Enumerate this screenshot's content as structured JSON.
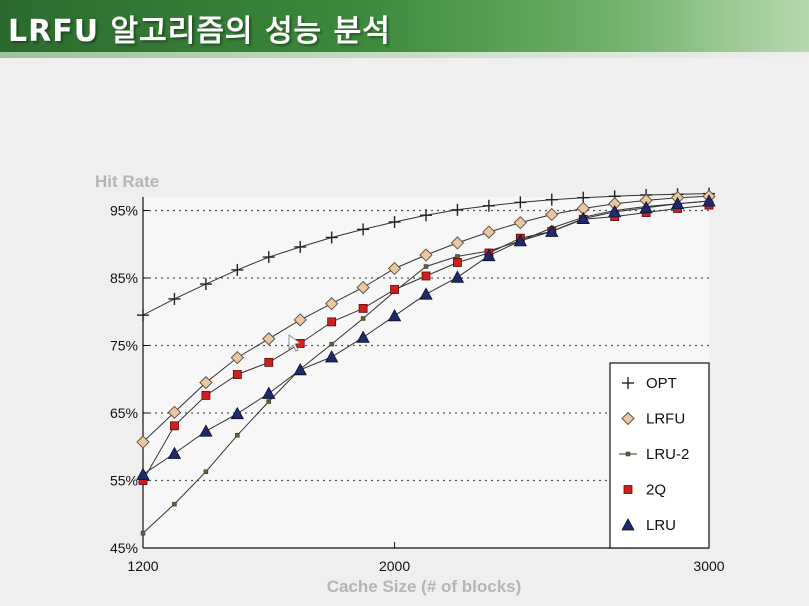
{
  "slide": {
    "title": "LRFU 알고리즘의 성능 분석"
  },
  "colors": {
    "title_green": "#3c8a3c",
    "opt": "#222222",
    "lrfu": "#e9c7a4",
    "lru2": "#6b5a3e",
    "q2": "#d11f1f",
    "lru": "#1f2a6b"
  },
  "chart_data": {
    "type": "line",
    "ylabel": "Hit Rate",
    "xlabel": "Cache Size (# of blocks)",
    "xlim": [
      1200,
      3000
    ],
    "ylim": [
      45,
      97
    ],
    "x_ticks": [
      {
        "value": 1200,
        "label": "1200"
      },
      {
        "value": 2000,
        "label": "2000"
      },
      {
        "value": 3000,
        "label": "3000"
      }
    ],
    "y_ticks": [
      {
        "value": 45,
        "label": "45%"
      },
      {
        "value": 55,
        "label": "55%"
      },
      {
        "value": 65,
        "label": "65%"
      },
      {
        "value": 75,
        "label": "75%"
      },
      {
        "value": 85,
        "label": "85%"
      },
      {
        "value": 95,
        "label": "95%"
      }
    ],
    "grid": "horizontal-dotted",
    "legend_position": "bottom-right",
    "x": [
      1200,
      1300,
      1400,
      1500,
      1600,
      1700,
      1800,
      1900,
      2000,
      2100,
      2200,
      2300,
      2400,
      2500,
      2600,
      2700,
      2800,
      2900,
      3000
    ],
    "series": [
      {
        "key": "opt",
        "name": "OPT",
        "marker": "plus",
        "values": [
          79.5,
          81.9,
          84.1,
          86.2,
          88.1,
          89.6,
          91.0,
          92.2,
          93.3,
          94.3,
          95.1,
          95.7,
          96.2,
          96.6,
          96.9,
          97.1,
          97.3,
          97.4,
          97.5
        ]
      },
      {
        "key": "lrfu",
        "name": "LRFU",
        "marker": "diamond",
        "values": [
          60.7,
          65.1,
          69.5,
          73.2,
          76.0,
          78.8,
          81.2,
          83.6,
          86.4,
          88.4,
          90.2,
          91.8,
          93.2,
          94.4,
          95.3,
          96.0,
          96.5,
          96.9,
          97.1
        ]
      },
      {
        "key": "lru2",
        "name": "LRU-2",
        "marker": "small-square",
        "values": [
          47.2,
          51.5,
          56.3,
          61.7,
          66.7,
          71.5,
          75.2,
          79.0,
          83.0,
          86.7,
          88.2,
          89.0,
          90.5,
          92.4,
          94.0,
          95.0,
          95.6,
          96.0,
          96.4
        ]
      },
      {
        "key": "q2",
        "name": "2Q",
        "marker": "square",
        "values": [
          55.0,
          63.1,
          67.6,
          70.7,
          72.5,
          75.3,
          78.5,
          80.5,
          83.3,
          85.3,
          87.3,
          88.7,
          90.9,
          91.9,
          93.7,
          94.1,
          94.7,
          95.3,
          95.8
        ]
      },
      {
        "key": "lru",
        "name": "LRU",
        "marker": "triangle",
        "values": [
          55.9,
          59.0,
          62.3,
          64.9,
          67.9,
          71.4,
          73.3,
          76.2,
          79.4,
          82.6,
          85.1,
          88.3,
          90.5,
          91.9,
          93.8,
          94.8,
          95.4,
          96.0,
          96.4
        ]
      }
    ]
  }
}
